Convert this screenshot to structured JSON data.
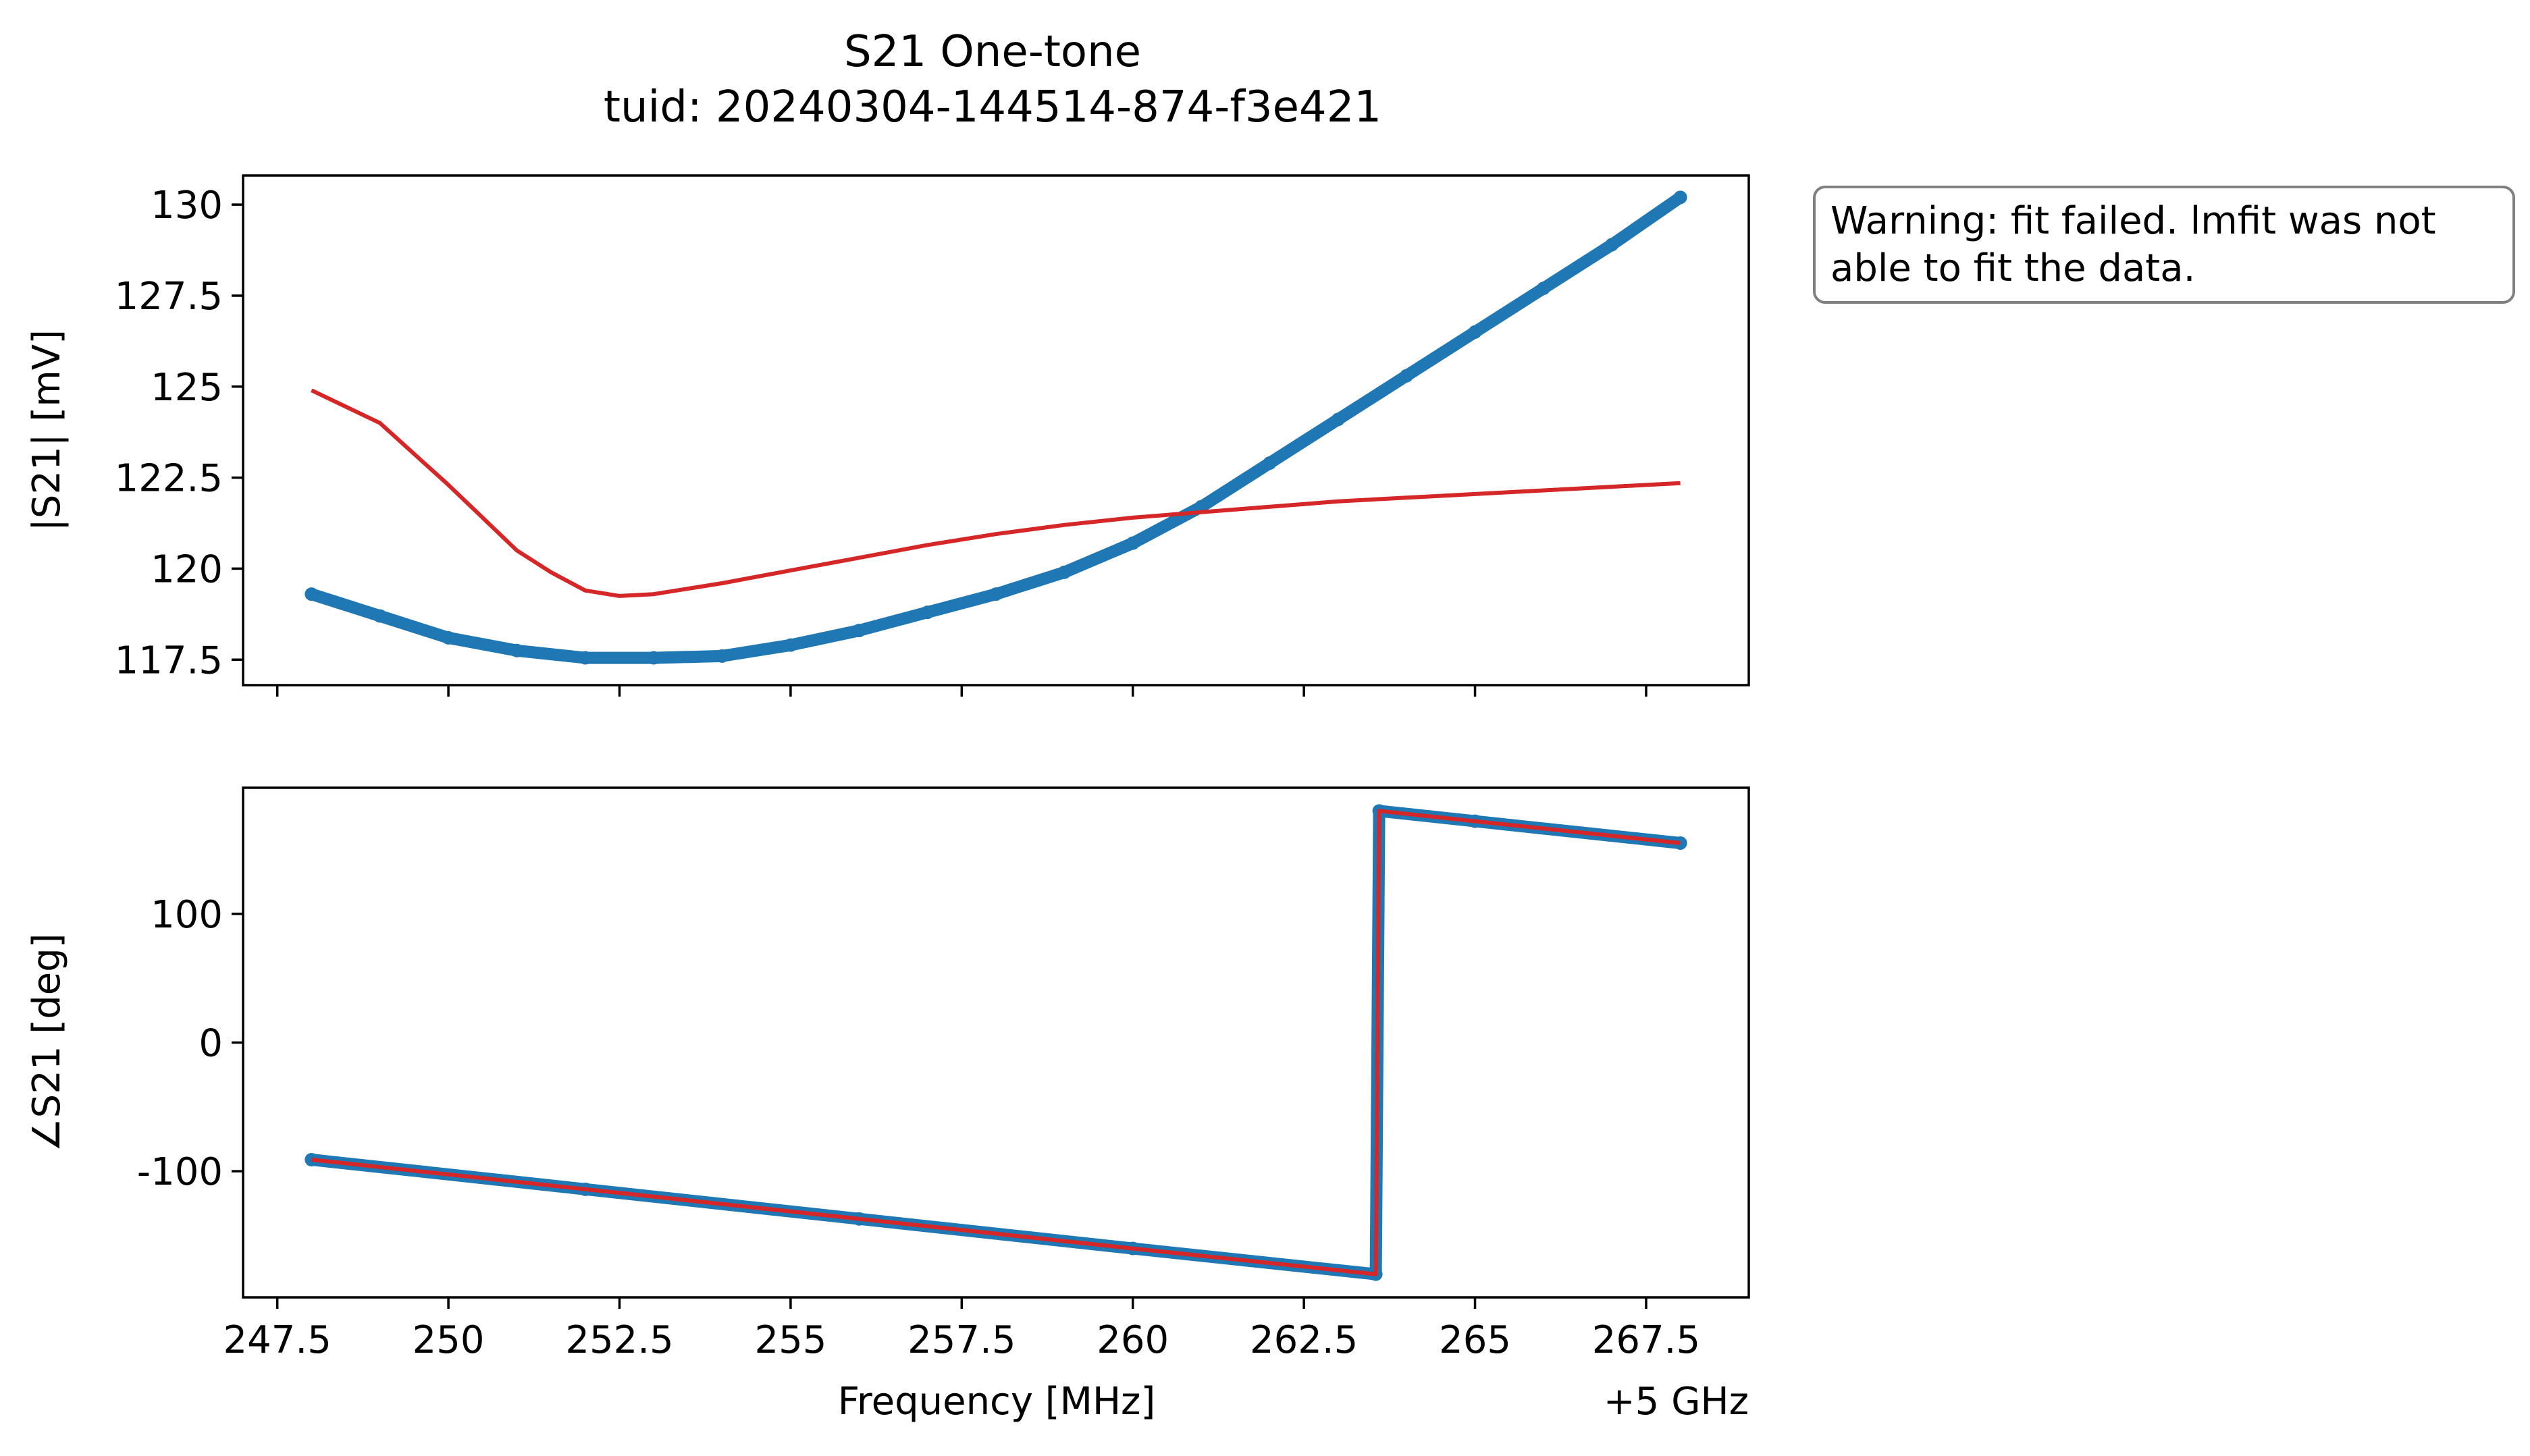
{
  "figure": {
    "title": "S21 One-tone",
    "subtitle": "tuid: 20240304-144514-874-f3e421",
    "warning": "Warning: fit failed. lmfit was not\nable to fit the data.",
    "colors": {
      "data": "#1f77b4",
      "fit": "#d62728",
      "box_edge": "#808080"
    }
  },
  "chart_data": [
    {
      "type": "scatter",
      "panel": "magnitude",
      "ylabel": "|S21| [mV]",
      "xlim": [
        247.0,
        269.0
      ],
      "ylim": [
        116.8,
        130.8
      ],
      "xticks": [
        247.5,
        250,
        252.5,
        255,
        257.5,
        260,
        262.5,
        265,
        267.5
      ],
      "yticks": [
        117.5,
        120,
        122.5,
        125,
        127.5,
        130
      ],
      "ytick_labels": [
        "117.5",
        "120",
        "122.5",
        "125",
        "127.5",
        "130"
      ],
      "series": [
        {
          "kind": "data",
          "x": [
            248.0,
            249.0,
            250.0,
            251.0,
            252.0,
            253.0,
            254.0,
            255.0,
            256.0,
            257.0,
            258.0,
            259.0,
            260.0,
            261.0,
            262.0,
            263.0,
            264.0,
            265.0,
            266.0,
            267.0,
            268.0
          ],
          "y": [
            119.3,
            118.7,
            118.1,
            117.75,
            117.55,
            117.55,
            117.6,
            117.9,
            118.3,
            118.8,
            119.3,
            119.9,
            120.7,
            121.7,
            122.9,
            124.1,
            125.3,
            126.5,
            127.7,
            128.9,
            130.2
          ]
        },
        {
          "kind": "fit",
          "x": [
            248.0,
            249.0,
            250.0,
            251.0,
            251.5,
            252.0,
            252.5,
            253.0,
            254.0,
            255.0,
            256.0,
            257.0,
            258.0,
            259.0,
            260.0,
            261.0,
            262.0,
            263.0,
            264.0,
            265.0,
            266.0,
            267.0,
            268.0
          ],
          "y": [
            124.9,
            124.0,
            122.3,
            120.5,
            119.9,
            119.4,
            119.25,
            119.3,
            119.6,
            119.95,
            120.3,
            120.65,
            120.95,
            121.2,
            121.4,
            121.55,
            121.7,
            121.85,
            121.95,
            122.05,
            122.15,
            122.25,
            122.35
          ]
        }
      ]
    },
    {
      "type": "scatter",
      "panel": "phase",
      "ylabel": "∠S21 [deg]",
      "xlabel": "Frequency [MHz]",
      "x_offset_label": "+5 GHz",
      "xlim": [
        247.0,
        269.0
      ],
      "ylim": [
        -198,
        198
      ],
      "xticks": [
        247.5,
        250,
        252.5,
        255,
        257.5,
        260,
        262.5,
        265,
        267.5
      ],
      "xtick_labels": [
        "247.5",
        "250",
        "252.5",
        "255",
        "257.5",
        "260",
        "262.5",
        "265",
        "267.5"
      ],
      "yticks": [
        -100,
        0,
        100
      ],
      "ytick_labels": [
        "-100",
        "0",
        "100"
      ],
      "series": [
        {
          "kind": "data",
          "x": [
            248.0,
            252.0,
            256.0,
            260.0,
            263.55,
            263.6,
            265.0,
            268.0
          ],
          "y": [
            -91.0,
            -114.0,
            -137.0,
            -160.0,
            -180.0,
            180.0,
            172.0,
            155.0
          ]
        },
        {
          "kind": "fit",
          "x": [
            248.0,
            252.0,
            256.0,
            260.0,
            263.55,
            263.6,
            265.0,
            268.0
          ],
          "y": [
            -91.0,
            -114.0,
            -137.0,
            -160.0,
            -180.0,
            180.0,
            172.0,
            155.0
          ]
        }
      ]
    }
  ]
}
